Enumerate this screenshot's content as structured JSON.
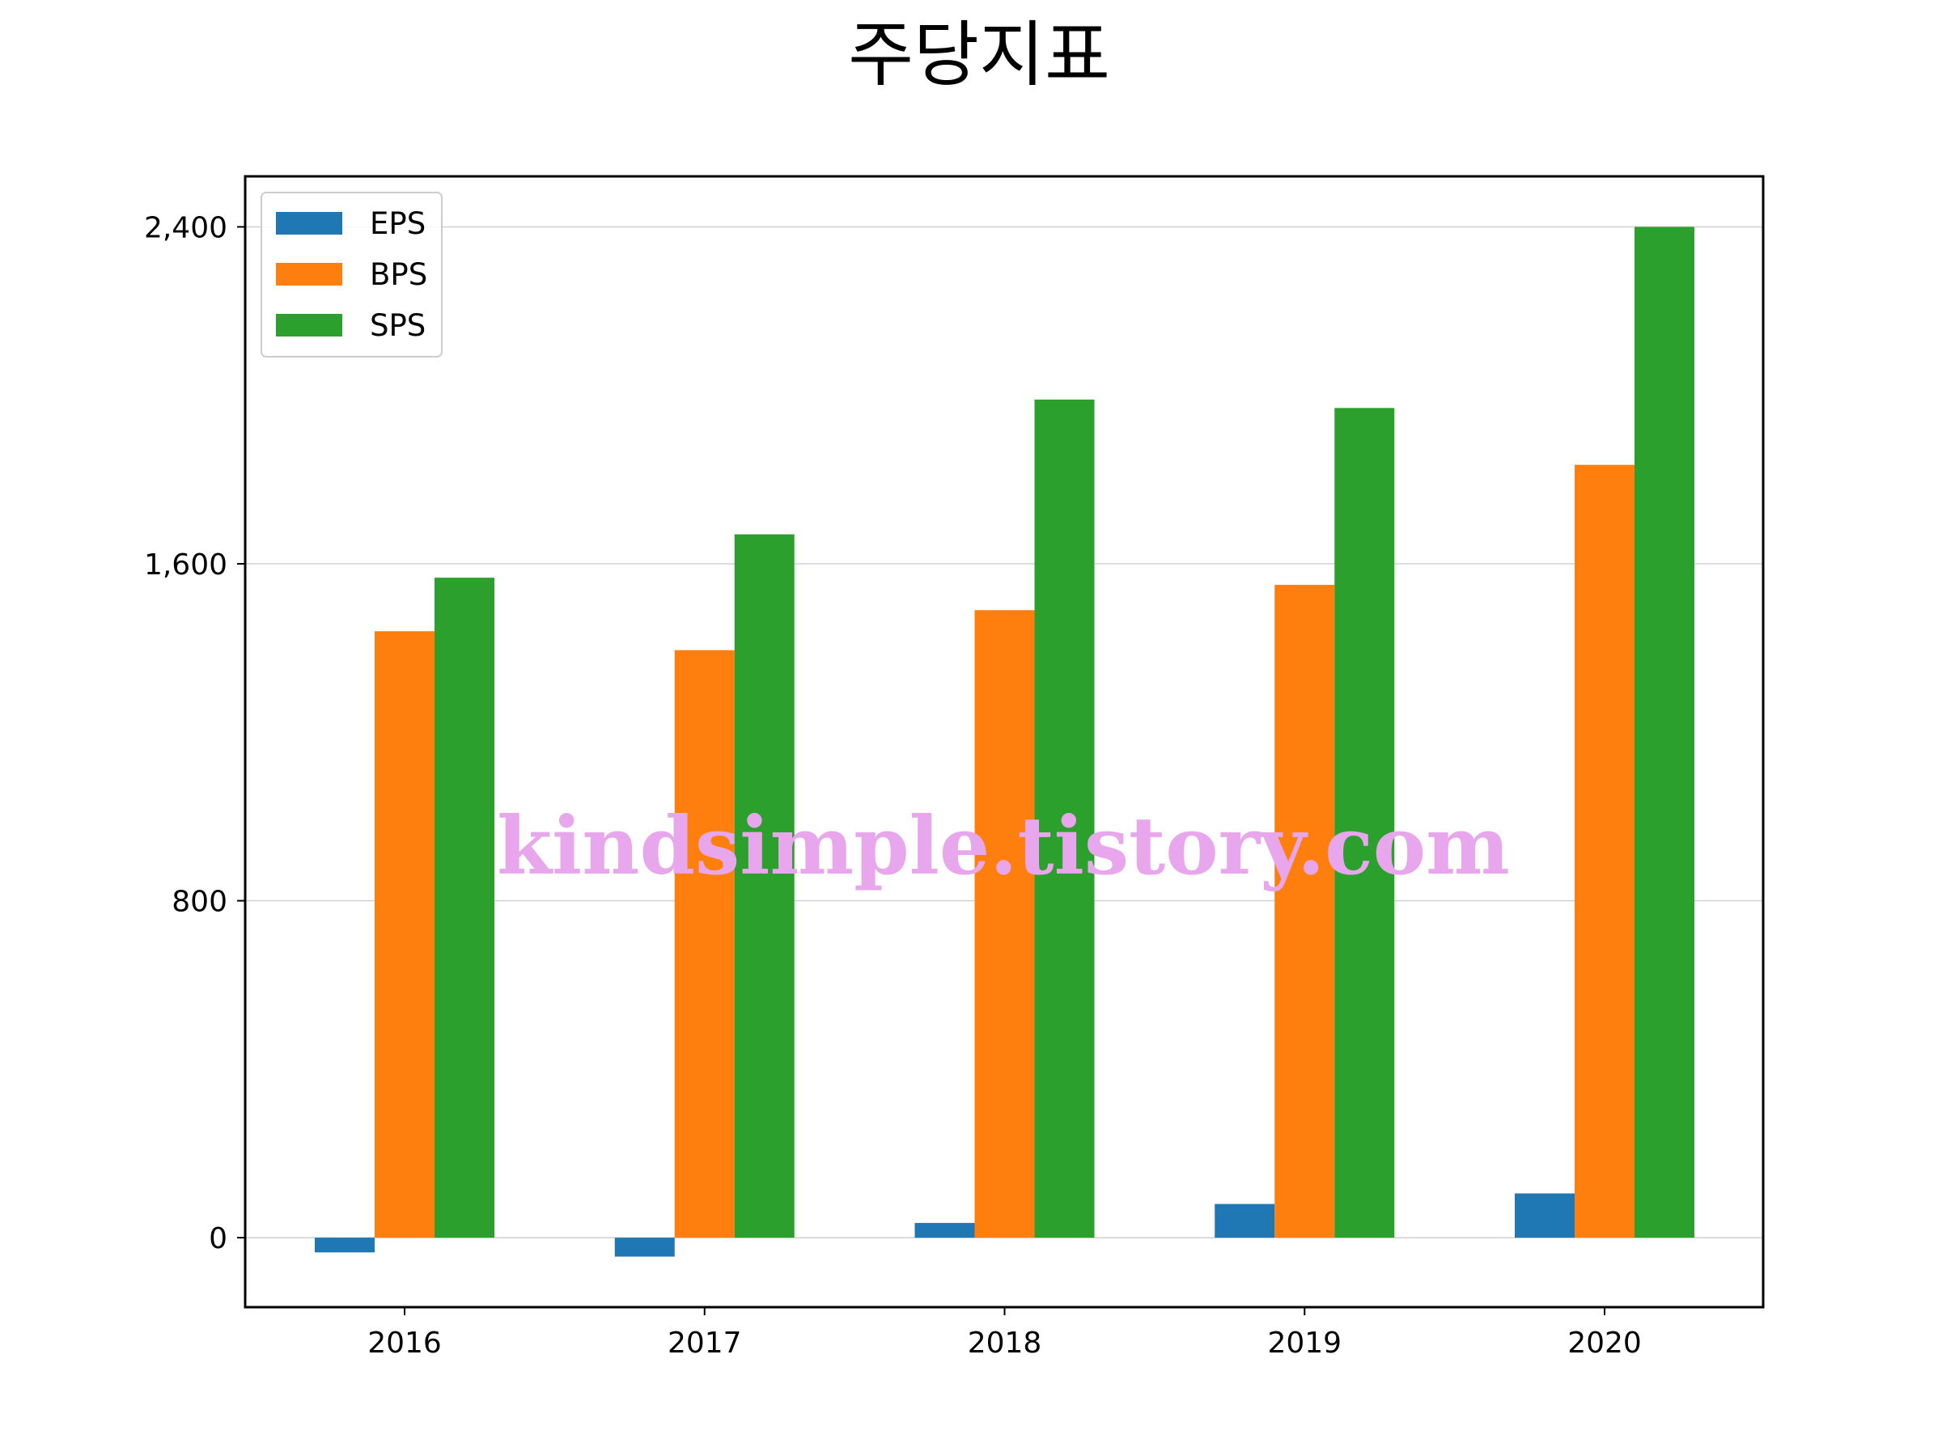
{
  "chart_data": {
    "type": "bar",
    "title": "주당지표",
    "xlabel": "",
    "ylabel": "",
    "categories": [
      "2016",
      "2017",
      "2018",
      "2019",
      "2020"
    ],
    "series": [
      {
        "name": "EPS",
        "values": [
          -35,
          -45,
          35,
          80,
          105
        ],
        "color": "#1f77b4"
      },
      {
        "name": "BPS",
        "values": [
          1440,
          1395,
          1490,
          1550,
          1835
        ],
        "color": "#ff7f0e"
      },
      {
        "name": "SPS",
        "values": [
          1567,
          1670,
          1990,
          1970,
          2400
        ],
        "color": "#2ca02c"
      }
    ],
    "ylim": [
      -165,
      2520
    ],
    "yticks": [
      0,
      800,
      1600,
      2400
    ],
    "ytick_labels": [
      "0",
      "800",
      "1,600",
      "2,400"
    ],
    "grid": "horizontal",
    "legend_position": "upper-left"
  },
  "watermark": {
    "text": "kindsimple.tistory.com",
    "color": "#e8a6ec"
  },
  "colors": {
    "axis": "#000000",
    "grid": "#d0d0d0",
    "legend_border": "#cccccc"
  }
}
